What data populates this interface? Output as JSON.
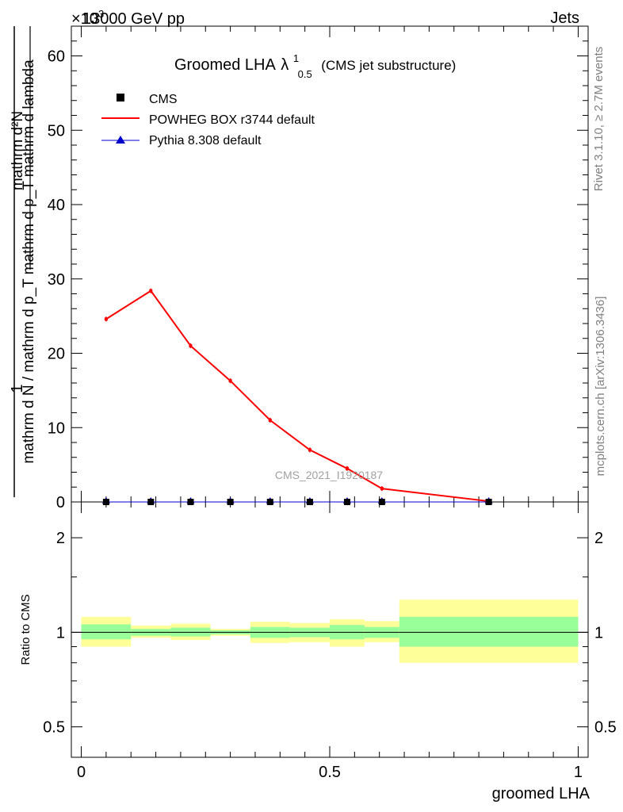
{
  "header": {
    "energy": "13000 GeV pp",
    "category": "Jets",
    "exponent_label": "×10",
    "exponent_sup": "3"
  },
  "side_labels": {
    "rivet": "Rivet 3.1.10, ≥ 2.7M events",
    "mcplots": "mcplots.cern.ch [arXiv:1306.3436]"
  },
  "watermark": "CMS_2021_I1920187",
  "chart_data": [
    {
      "type": "line",
      "panel": "main",
      "title": "Groomed LHA",
      "title_symbol": "λ",
      "title_sup": "1",
      "title_sub": "0.5",
      "title_suffix": "(CMS jet substructure)",
      "ylabel_numerator": "mathrm d²N",
      "ylabel_denominator": "mathrm d N / mathrm d p_T mathrm d p_T mathrm d lambda",
      "ylabel_one": "1",
      "ylim": [
        0,
        64
      ],
      "yticks": [
        0,
        10,
        20,
        30,
        40,
        50,
        60
      ],
      "xlim": [
        -0.02,
        1.02
      ],
      "legend_position": "top-left",
      "legend": [
        {
          "name": "CMS",
          "marker": "square",
          "color": "#000000"
        },
        {
          "name": "POWHEG BOX r3744 default",
          "marker": "line",
          "color": "#ff0000"
        },
        {
          "name": "Pythia 8.308 default",
          "marker": "triangle",
          "color": "#0000cc"
        }
      ],
      "series": [
        {
          "name": "CMS",
          "color": "#000000",
          "x": [
            0.05,
            0.14,
            0.22,
            0.3,
            0.38,
            0.46,
            0.535,
            0.605,
            0.82
          ],
          "values": [
            0,
            0,
            0,
            0,
            0,
            0,
            0,
            0,
            0
          ]
        },
        {
          "name": "POWHEG BOX r3744 default",
          "color": "#ff0000",
          "x": [
            0.05,
            0.14,
            0.22,
            0.3,
            0.38,
            0.46,
            0.535,
            0.605,
            0.82
          ],
          "values": [
            24.6,
            28.4,
            21.0,
            16.3,
            11.0,
            7.0,
            4.5,
            1.8,
            0.1
          ]
        },
        {
          "name": "Pythia 8.308 default",
          "color": "#0000cc",
          "x": [
            0.05,
            0.14,
            0.22,
            0.3,
            0.38,
            0.46,
            0.535,
            0.605,
            0.82
          ],
          "values": [
            0,
            0,
            0,
            0,
            0,
            0,
            0,
            0,
            0
          ]
        }
      ]
    },
    {
      "type": "area",
      "panel": "ratio",
      "ylabel": "Ratio to CMS",
      "xlabel": "groomed LHA",
      "scale": "log",
      "ylim": [
        0.4,
        2.6
      ],
      "yticks": [
        0.5,
        1,
        2
      ],
      "xticks": [
        0,
        0.5,
        1
      ],
      "xlim": [
        -0.02,
        1.02
      ],
      "reference": 1,
      "bands": [
        {
          "xlo": 0.0,
          "xhi": 0.1,
          "inner": [
            0.95,
            1.06
          ],
          "outer": [
            0.9,
            1.12
          ]
        },
        {
          "xlo": 0.1,
          "xhi": 0.18,
          "inner": [
            0.975,
            1.025
          ],
          "outer": [
            0.96,
            1.05
          ]
        },
        {
          "xlo": 0.18,
          "xhi": 0.26,
          "inner": [
            0.97,
            1.035
          ],
          "outer": [
            0.945,
            1.065
          ]
        },
        {
          "xlo": 0.26,
          "xhi": 0.34,
          "inner": [
            0.985,
            1.015
          ],
          "outer": [
            0.975,
            1.025
          ]
        },
        {
          "xlo": 0.34,
          "xhi": 0.42,
          "inner": [
            0.96,
            1.04
          ],
          "outer": [
            0.925,
            1.08
          ]
        },
        {
          "xlo": 0.42,
          "xhi": 0.5,
          "inner": [
            0.965,
            1.035
          ],
          "outer": [
            0.93,
            1.07
          ]
        },
        {
          "xlo": 0.5,
          "xhi": 0.57,
          "inner": [
            0.95,
            1.055
          ],
          "outer": [
            0.9,
            1.1
          ]
        },
        {
          "xlo": 0.57,
          "xhi": 0.64,
          "inner": [
            0.96,
            1.04
          ],
          "outer": [
            0.93,
            1.085
          ]
        },
        {
          "xlo": 0.64,
          "xhi": 1.0,
          "inner": [
            0.9,
            1.12
          ],
          "outer": [
            0.8,
            1.27
          ]
        }
      ]
    }
  ]
}
